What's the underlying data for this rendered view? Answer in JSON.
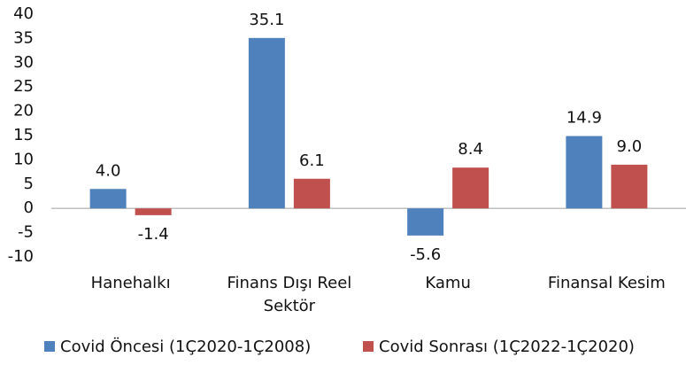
{
  "chart_data": {
    "type": "bar",
    "categories": [
      "Hanehalkı",
      "Finans Dışı Reel Sektör",
      "Kamu",
      "Finansal Kesim"
    ],
    "series": [
      {
        "name": "Covid Öncesi (1Ç2020-1Ç2008)",
        "color": "#4f81bd",
        "values": [
          4.0,
          35.1,
          -5.6,
          14.9
        ],
        "value_labels": [
          "4.0",
          "35.1",
          "-5.6",
          "14.9"
        ]
      },
      {
        "name": "Covid Sonrası (1Ç2022-1Ç2020)",
        "color": "#c0504d",
        "values": [
          -1.4,
          6.1,
          8.4,
          9.0
        ],
        "value_labels": [
          "-1.4",
          "6.1",
          "8.4",
          "9.0"
        ]
      }
    ],
    "ylim": [
      -10,
      40
    ],
    "yticks": [
      -10,
      -5,
      0,
      5,
      10,
      15,
      20,
      25,
      30,
      35,
      40
    ],
    "legend": "bottom"
  }
}
